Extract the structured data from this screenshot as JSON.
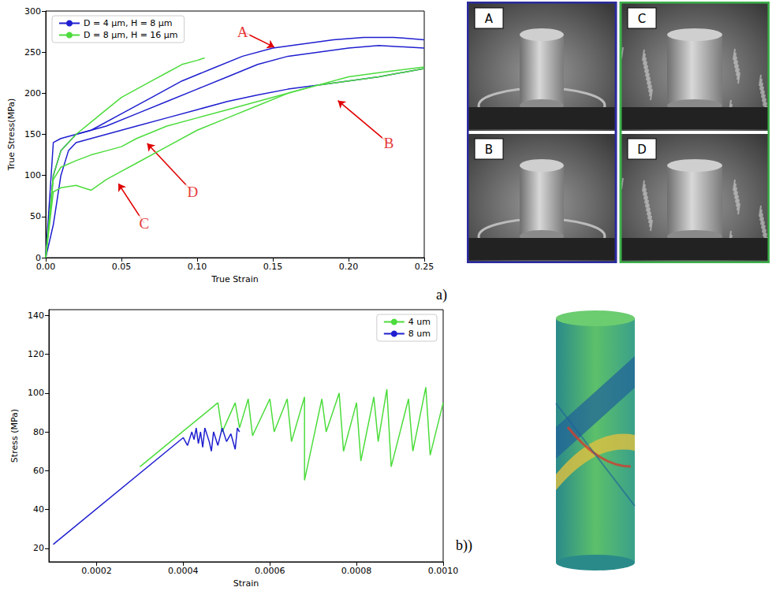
{
  "chart_data": [
    {
      "type": "line",
      "x_label": "True Strain",
      "y_label": "True Stress(MPa)",
      "xlim": [
        0,
        0.25
      ],
      "ylim": [
        0,
        300
      ],
      "xticks": [
        {
          "value": 0,
          "label": "0.00"
        },
        {
          "value": 0.05,
          "label": "0.05"
        },
        {
          "value": 0.1,
          "label": "0.10"
        },
        {
          "value": 0.15,
          "label": "0.15"
        },
        {
          "value": 0.2,
          "label": "0.20"
        },
        {
          "value": 0.25,
          "label": "0.25"
        }
      ],
      "yticks": [
        0,
        50,
        100,
        150,
        200,
        250,
        300
      ],
      "legend": "upper left",
      "grid": false,
      "series": [
        {
          "name": "D = 4 µm, H = 8 µm",
          "color": "#1f1fd0",
          "x": [
            0,
            0.005,
            0.01,
            0.02,
            0.03,
            0.05,
            0.07,
            0.09,
            0.11,
            0.13,
            0.15,
            0.17,
            0.19,
            0.21,
            0.23,
            0.25
          ],
          "values": [
            0,
            140,
            145,
            150,
            155,
            175,
            195,
            215,
            230,
            245,
            255,
            260,
            265,
            268,
            268,
            265
          ]
        },
        {
          "name": "D = 4 µm, H = 8 µm",
          "color": "#1f1fd0",
          "x": [
            0,
            0.005,
            0.01,
            0.02,
            0.04,
            0.06,
            0.08,
            0.1,
            0.12,
            0.14,
            0.16,
            0.18,
            0.2,
            0.22,
            0.25
          ],
          "values": [
            0,
            100,
            130,
            150,
            160,
            175,
            190,
            205,
            220,
            235,
            245,
            250,
            255,
            258,
            255
          ]
        },
        {
          "name": "D = 4 µm, H = 8 µm",
          "color": "#1f1fd0",
          "x": [
            0,
            0.005,
            0.01,
            0.015,
            0.02,
            0.04,
            0.06,
            0.08,
            0.1,
            0.12,
            0.14,
            0.16,
            0.18,
            0.2,
            0.22,
            0.25
          ],
          "values": [
            0,
            40,
            100,
            130,
            140,
            150,
            160,
            170,
            180,
            190,
            198,
            205,
            210,
            215,
            220,
            230
          ]
        },
        {
          "name": "D = 8 µm, H = 16 µm",
          "color": "#4cdc3c",
          "x": [
            0,
            0.005,
            0.01,
            0.02,
            0.03,
            0.04,
            0.05,
            0.06,
            0.07,
            0.08,
            0.09,
            0.1,
            0.105
          ],
          "values": [
            0,
            100,
            130,
            150,
            165,
            180,
            195,
            205,
            215,
            225,
            235,
            240,
            243
          ]
        },
        {
          "name": "D = 8 µm, H = 16 µm",
          "color": "#4cdc3c",
          "x": [
            0,
            0.005,
            0.01,
            0.02,
            0.03,
            0.04,
            0.05,
            0.06,
            0.08,
            0.1,
            0.12,
            0.14,
            0.16,
            0.18,
            0.2,
            0.22,
            0.25
          ],
          "values": [
            0,
            95,
            110,
            118,
            125,
            130,
            135,
            145,
            160,
            170,
            180,
            190,
            200,
            210,
            220,
            225,
            232
          ]
        },
        {
          "name": "D = 8 µm, H = 16 µm",
          "color": "#4cdc3c",
          "x": [
            0,
            0.005,
            0.01,
            0.02,
            0.03,
            0.04,
            0.05,
            0.06,
            0.08,
            0.1,
            0.12,
            0.14,
            0.16,
            0.18,
            0.2,
            0.22,
            0.25
          ],
          "values": [
            0,
            80,
            85,
            88,
            82,
            95,
            105,
            115,
            135,
            155,
            170,
            185,
            200,
            210,
            215,
            220,
            230
          ]
        }
      ],
      "annotations": [
        {
          "text": "A",
          "x": 0.13,
          "y": 275,
          "arrow_x": 0.151,
          "arrow_y": 256,
          "color": "#e00000"
        },
        {
          "text": "B",
          "x": 0.2266,
          "y": 139,
          "arrow_x": 0.193,
          "arrow_y": 191,
          "color": "#e00000"
        },
        {
          "text": "C",
          "x": 0.065,
          "y": 42,
          "arrow_x": 0.048,
          "arrow_y": 90,
          "color": "#e00000"
        },
        {
          "text": "D",
          "x": 0.097,
          "y": 80,
          "arrow_x": 0.067,
          "arrow_y": 139,
          "color": "#e00000"
        }
      ]
    },
    {
      "type": "line",
      "x_label": "Strain",
      "y_label": "Stress (MPa)",
      "xlim": [
        9e-05,
        0.001
      ],
      "ylim": [
        13,
        143
      ],
      "xticks": [
        0.0002,
        0.0004,
        0.0006,
        0.0008,
        {
          "value": 0.001,
          "label": "0.0010"
        }
      ],
      "yticks": [
        20,
        40,
        60,
        80,
        100,
        120,
        140
      ],
      "legend": "upper right",
      "grid": false,
      "series": [
        {
          "name": "4 um",
          "color": "#4cdc3c",
          "x": [
            0.0003,
            0.00048,
            0.00049,
            0.00052,
            0.00053,
            0.00055,
            0.00056,
            0.0006,
            0.00061,
            0.00064,
            0.00065,
            0.00068,
            0.00068,
            0.00072,
            0.00073,
            0.00076,
            0.00077,
            0.0008,
            0.00081,
            0.00084,
            0.00085,
            0.00087,
            0.00088,
            0.00092,
            0.00093,
            0.00096,
            0.00097,
            0.001
          ],
          "values": [
            62,
            95,
            80,
            95,
            82,
            97,
            78,
            97,
            80,
            97,
            75,
            98,
            55,
            97,
            80,
            100,
            70,
            95,
            65,
            98,
            75,
            102,
            62,
            97,
            70,
            103,
            68,
            95
          ]
        },
        {
          "name": "8 um",
          "color": "#1f1fd0",
          "x": [
            0.0001,
            0.0004,
            0.00041,
            0.00042,
            0.000425,
            0.00043,
            0.000435,
            0.00044,
            0.000445,
            0.00045,
            0.00046,
            0.000465,
            0.00047,
            0.00048,
            0.00049,
            0.0005,
            0.00051,
            0.00052,
            0.000525,
            0.00053
          ],
          "values": [
            22,
            77,
            73,
            80,
            76,
            82,
            74,
            80,
            72,
            82,
            75,
            70,
            80,
            73,
            82,
            75,
            79,
            71,
            82,
            80
          ]
        }
      ]
    }
  ],
  "panel_labels": [
    "a)",
    "b))"
  ],
  "images": [
    {
      "letter": "A",
      "color": "#2b2ba0"
    },
    {
      "letter": "B",
      "color": "#2b2ba0"
    },
    {
      "letter": "C",
      "color": "#3cb04a"
    },
    {
      "letter": "D",
      "color": "#3cb04a"
    }
  ]
}
